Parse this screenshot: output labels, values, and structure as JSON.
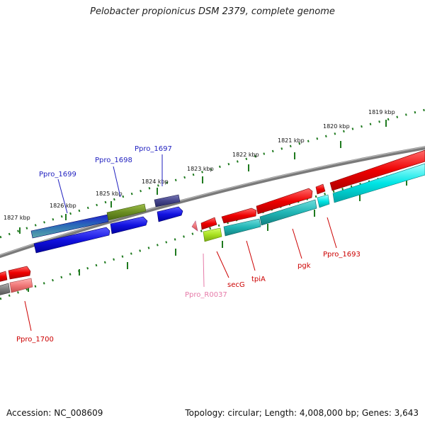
{
  "title": "Pelobacter propionicus DSM 2379, complete genome",
  "footer": {
    "accession": "Accession: NC_008609",
    "summary": "Topology: circular; Length: 4,008,000 bp; Genes: 3,643"
  },
  "colors": {
    "backbone": "#7f7f7f",
    "tick": "#1f7a1f",
    "label_blue": "#1f1fbf",
    "label_red": "#cc0000",
    "label_pink": "#e67aa8"
  },
  "scale_labels": [
    "1819 kbp",
    "1820 kbp",
    "1821 kbp",
    "1822 kbp",
    "1823 kbp",
    "1824 kbp",
    "1825 kbp",
    "1826 kbp",
    "1827 kbp"
  ],
  "gene_labels": [
    "Ppro_1697",
    "Ppro_1698",
    "Ppro_1699",
    "Ppro_1693",
    "pgk",
    "tpiA",
    "secG",
    "Ppro_R0037",
    "Ppro_1700"
  ]
}
